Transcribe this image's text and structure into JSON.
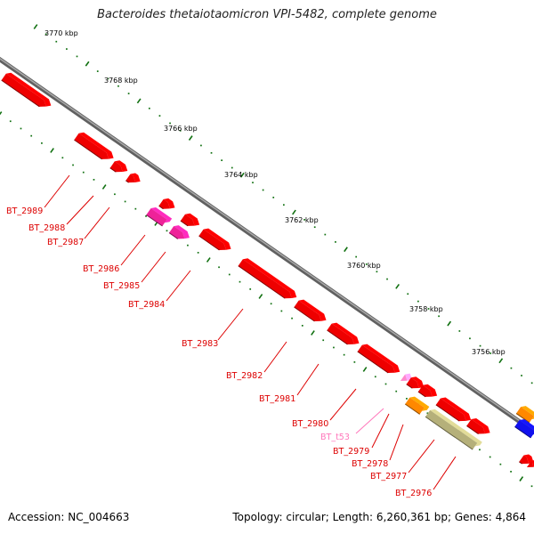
{
  "title": "Bacteroides thetaiotaomicron VPI-5482, complete genome",
  "footer": {
    "accession": "Accession: NC_004663",
    "topology": "Topology: circular; Length: 6,260,361 bp; Genes: 4,864"
  },
  "scale_ticks": [
    {
      "label": "3770 kbp"
    },
    {
      "label": "3768 kbp"
    },
    {
      "label": "3766 kbp"
    },
    {
      "label": "3764 kbp"
    },
    {
      "label": "3762 kbp"
    },
    {
      "label": "3760 kbp"
    },
    {
      "label": "3758 kbp"
    },
    {
      "label": "3756 kbp"
    }
  ],
  "colors": {
    "backbone": "#808080",
    "cds": "#ee0000",
    "cds_magenta": "#ee2299",
    "trna": "#ff88cc",
    "orange": "#ff8800",
    "olive": "#b5b07a",
    "blue": "#1111ee",
    "tick": "#107010",
    "label": "#dd0000",
    "label_trna": "#ff77bb"
  },
  "gene_labels": [
    {
      "text": "BT_2989",
      "kind": "cds"
    },
    {
      "text": "BT_2988",
      "kind": "cds"
    },
    {
      "text": "BT_2987",
      "kind": "cds"
    },
    {
      "text": "BT_2986",
      "kind": "cds"
    },
    {
      "text": "BT_2985",
      "kind": "cds"
    },
    {
      "text": "BT_2984",
      "kind": "cds"
    },
    {
      "text": "BT_2983",
      "kind": "cds"
    },
    {
      "text": "BT_2982",
      "kind": "cds"
    },
    {
      "text": "BT_2981",
      "kind": "cds"
    },
    {
      "text": "BT_2980",
      "kind": "cds"
    },
    {
      "text": "BT_t53",
      "kind": "trna"
    },
    {
      "text": "BT_2979",
      "kind": "cds"
    },
    {
      "text": "BT_2978",
      "kind": "cds"
    },
    {
      "text": "BT_2977",
      "kind": "cds"
    },
    {
      "text": "BT_2976",
      "kind": "cds"
    }
  ]
}
